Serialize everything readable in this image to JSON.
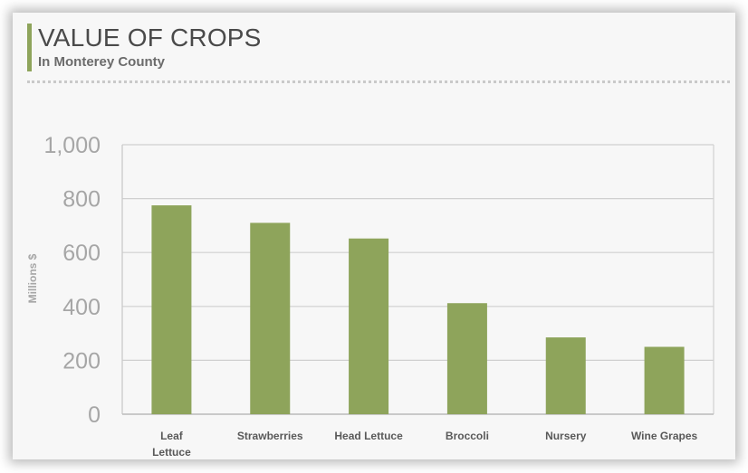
{
  "header": {
    "title": "VALUE OF CROPS",
    "subtitle": "In Monterey County"
  },
  "chart_data": {
    "type": "bar",
    "title": "VALUE OF CROPS",
    "subtitle": "In Monterey County",
    "xlabel": "",
    "ylabel": "Millions $",
    "categories": [
      "Leaf Lettuce",
      "Strawberries",
      "Head Lettuce",
      "Broccoli",
      "Nursery",
      "Wine Grapes"
    ],
    "category_lines": [
      [
        "Leaf",
        "Lettuce"
      ],
      [
        "Strawberries"
      ],
      [
        "Head Lettuce"
      ],
      [
        "Broccoli"
      ],
      [
        "Nursery"
      ],
      [
        "Wine Grapes"
      ]
    ],
    "values": [
      775,
      710,
      652,
      412,
      285,
      250
    ],
    "ylim": [
      0,
      1000
    ],
    "yticks": [
      0,
      200,
      400,
      600,
      800,
      1000
    ],
    "ytick_labels": [
      "0",
      "200",
      "400",
      "600",
      "800",
      "1,000"
    ],
    "bar_color": "#8ea45b",
    "grid": true,
    "legend": "none"
  }
}
